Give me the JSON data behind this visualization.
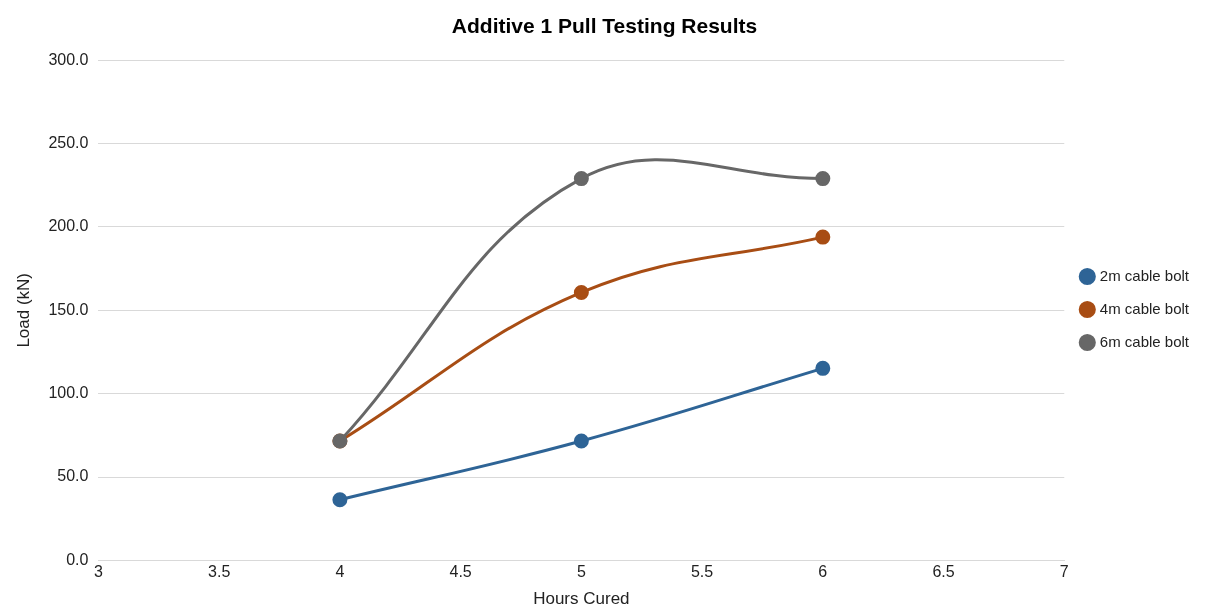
{
  "chart_data": {
    "type": "line",
    "title": "Additive 1 Pull Testing Results",
    "xlabel": "Hours Cured",
    "ylabel": "Load (kN)",
    "x": [
      4,
      5,
      6
    ],
    "series": [
      {
        "name": "2m cable bolt",
        "color": "#2e6496",
        "values": [
          36.4,
          71.6,
          115.2
        ]
      },
      {
        "name": "4m cable bolt",
        "color": "#a84d14",
        "values": [
          71.6,
          160.7,
          193.9
        ]
      },
      {
        "name": "6m cable bolt",
        "color": "#676767",
        "values": [
          71.6,
          229,
          229
        ]
      }
    ],
    "xlim": [
      3,
      7
    ],
    "xticks": [
      3,
      3.5,
      4,
      4.5,
      5,
      5.5,
      6,
      6.5,
      7
    ],
    "ylim": [
      0,
      300
    ],
    "yticks": [
      {
        "value": 0,
        "label": "0.0"
      },
      {
        "value": 50,
        "label": "50.0"
      },
      {
        "value": 100,
        "label": "100.0"
      },
      {
        "value": 150,
        "label": "150.0"
      },
      {
        "value": 200,
        "label": "200.0"
      },
      {
        "value": 250,
        "label": "250.0"
      },
      {
        "value": 300,
        "label": "300.0"
      }
    ],
    "grid": "y",
    "legend": "right",
    "marker": "circle",
    "line_style": "solid"
  }
}
